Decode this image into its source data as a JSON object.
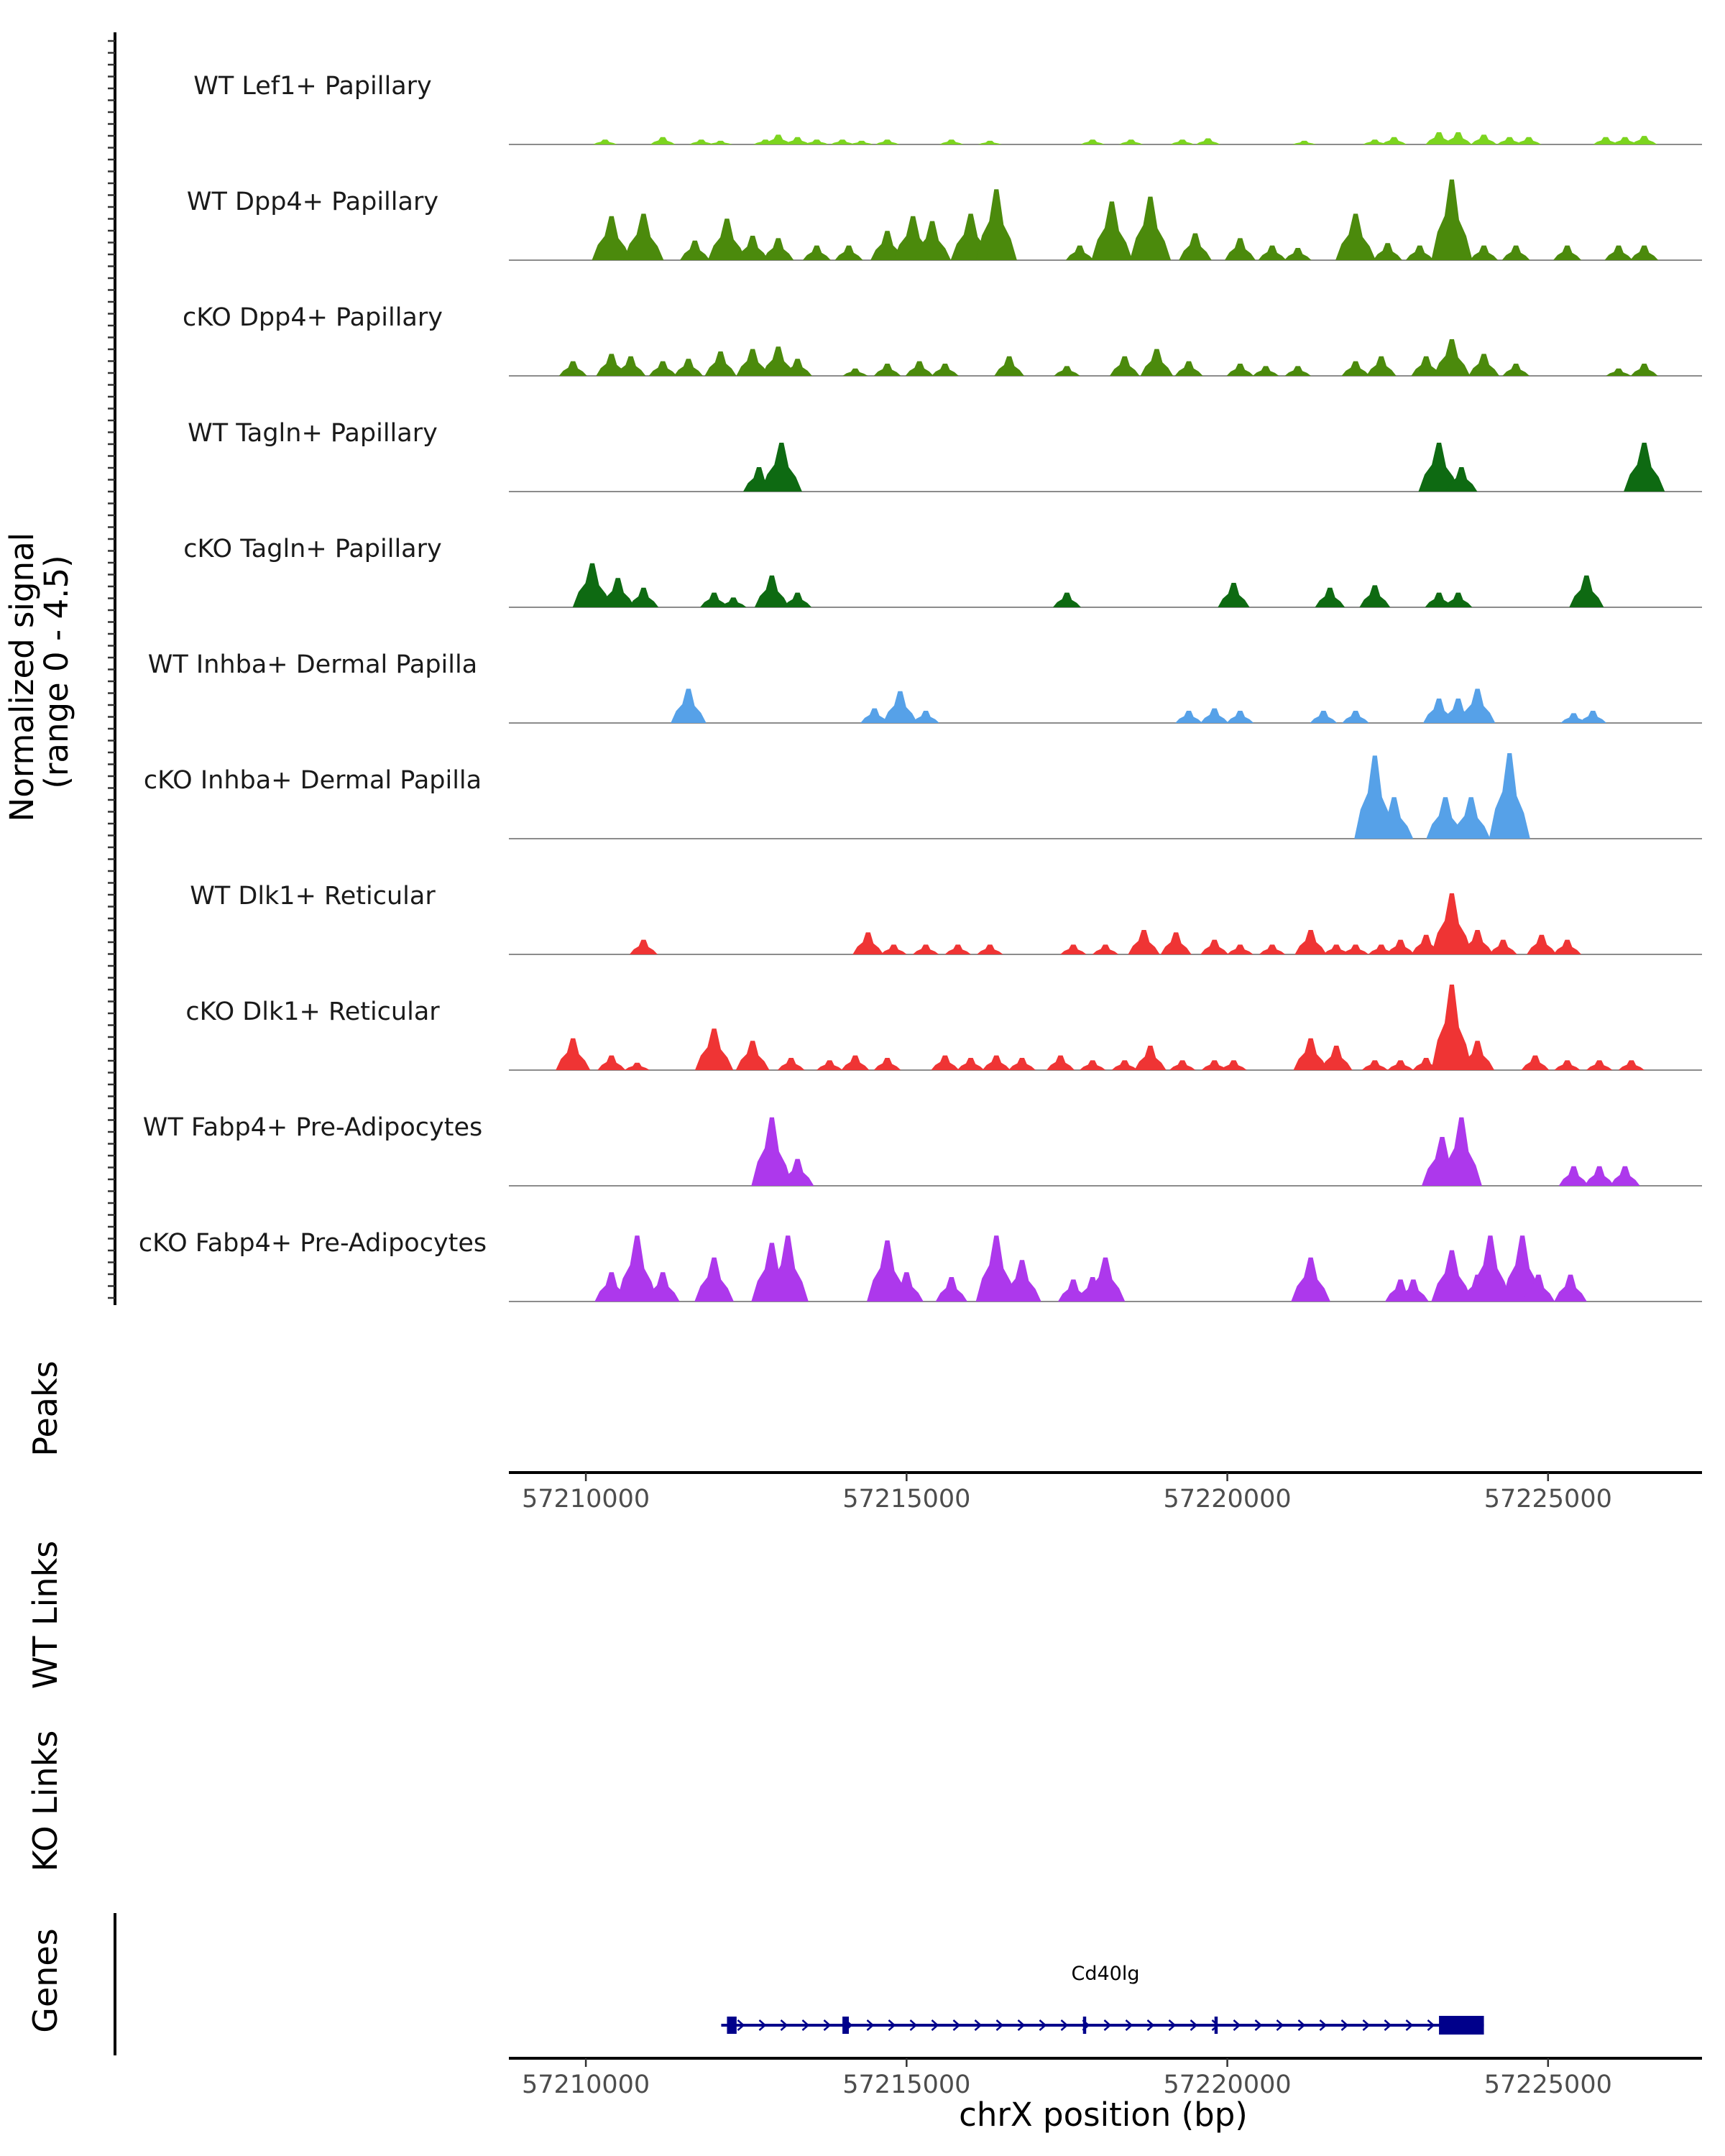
{
  "chart_data": {
    "type": "coverage",
    "title": "",
    "xlabel": "chrX position (bp)",
    "ylabel": "Normalized signal\n(range 0 - 4.5)",
    "xlim": [
      57208800,
      57227400
    ],
    "ylim": [
      0,
      4.5
    ],
    "xticks": [
      57210000,
      57215000,
      57220000,
      57225000
    ],
    "xtick_labels": [
      "57210000",
      "57215000",
      "57220000",
      "57225000"
    ],
    "section_labels": {
      "peaks": "Peaks",
      "wt_links": "WT Links",
      "ko_links": "KO Links",
      "genes": "Genes"
    },
    "tracks": [
      {
        "name": "WT Lef1+ Papillary",
        "color": "#7cd41f",
        "peaks": [
          [
            57210300,
            0.2
          ],
          [
            57211200,
            0.3
          ],
          [
            57211800,
            0.2
          ],
          [
            57212100,
            0.15
          ],
          [
            57212800,
            0.2
          ],
          [
            57213000,
            0.4
          ],
          [
            57213300,
            0.3
          ],
          [
            57213600,
            0.2
          ],
          [
            57214000,
            0.2
          ],
          [
            57214300,
            0.15
          ],
          [
            57214700,
            0.2
          ],
          [
            57215700,
            0.2
          ],
          [
            57216300,
            0.15
          ],
          [
            57217900,
            0.2
          ],
          [
            57218500,
            0.2
          ],
          [
            57219300,
            0.2
          ],
          [
            57219700,
            0.25
          ],
          [
            57221200,
            0.15
          ],
          [
            57222300,
            0.2
          ],
          [
            57222600,
            0.3
          ],
          [
            57223300,
            0.5
          ],
          [
            57223600,
            0.5
          ],
          [
            57224000,
            0.4
          ],
          [
            57224400,
            0.3
          ],
          [
            57224700,
            0.3
          ],
          [
            57225900,
            0.3
          ],
          [
            57226200,
            0.3
          ],
          [
            57226500,
            0.35
          ]
        ]
      },
      {
        "name": "WT Dpp4+ Papillary",
        "color": "#4b8a0c",
        "peaks": [
          [
            57210400,
            1.8
          ],
          [
            57210900,
            1.9
          ],
          [
            57211700,
            0.8
          ],
          [
            57212200,
            1.7
          ],
          [
            57212600,
            1.0
          ],
          [
            57213000,
            0.9
          ],
          [
            57213600,
            0.6
          ],
          [
            57214100,
            0.6
          ],
          [
            57214700,
            1.2
          ],
          [
            57215100,
            1.8
          ],
          [
            57215400,
            1.6
          ],
          [
            57216000,
            1.9
          ],
          [
            57216400,
            2.9
          ],
          [
            57217700,
            0.6
          ],
          [
            57218200,
            2.4
          ],
          [
            57218800,
            2.6
          ],
          [
            57219500,
            1.1
          ],
          [
            57220200,
            0.9
          ],
          [
            57220700,
            0.6
          ],
          [
            57221100,
            0.5
          ],
          [
            57222000,
            1.9
          ],
          [
            57222500,
            0.7
          ],
          [
            57223000,
            0.6
          ],
          [
            57223500,
            3.3
          ],
          [
            57224000,
            0.6
          ],
          [
            57224500,
            0.6
          ],
          [
            57225300,
            0.6
          ],
          [
            57226100,
            0.6
          ],
          [
            57226500,
            0.6
          ]
        ]
      },
      {
        "name": "cKO Dpp4+ Papillary",
        "color": "#4b8a0c",
        "peaks": [
          [
            57209800,
            0.6
          ],
          [
            57210400,
            0.9
          ],
          [
            57210700,
            0.8
          ],
          [
            57211200,
            0.6
          ],
          [
            57211600,
            0.7
          ],
          [
            57212100,
            1.0
          ],
          [
            57212600,
            1.1
          ],
          [
            57213000,
            1.2
          ],
          [
            57213300,
            0.7
          ],
          [
            57214200,
            0.3
          ],
          [
            57214700,
            0.5
          ],
          [
            57215200,
            0.6
          ],
          [
            57215600,
            0.5
          ],
          [
            57216600,
            0.8
          ],
          [
            57217500,
            0.4
          ],
          [
            57218400,
            0.8
          ],
          [
            57218900,
            1.1
          ],
          [
            57219400,
            0.6
          ],
          [
            57220200,
            0.5
          ],
          [
            57220600,
            0.4
          ],
          [
            57221100,
            0.4
          ],
          [
            57222000,
            0.6
          ],
          [
            57222400,
            0.8
          ],
          [
            57223100,
            0.8
          ],
          [
            57223500,
            1.5
          ],
          [
            57224000,
            0.9
          ],
          [
            57224500,
            0.5
          ],
          [
            57226100,
            0.3
          ],
          [
            57226500,
            0.5
          ]
        ]
      },
      {
        "name": "WT Tagln+ Papillary",
        "color": "#0e6a12",
        "peaks": [
          [
            57212700,
            1.0
          ],
          [
            57213050,
            2.0
          ],
          [
            57223300,
            2.0
          ],
          [
            57223650,
            1.0
          ],
          [
            57226500,
            2.0
          ]
        ]
      },
      {
        "name": "cKO Tagln+ Papillary",
        "color": "#0e6a12",
        "peaks": [
          [
            57210100,
            1.8
          ],
          [
            57210500,
            1.2
          ],
          [
            57210900,
            0.8
          ],
          [
            57212000,
            0.6
          ],
          [
            57212300,
            0.4
          ],
          [
            57212900,
            1.3
          ],
          [
            57213300,
            0.6
          ],
          [
            57217500,
            0.6
          ],
          [
            57220100,
            1.0
          ],
          [
            57221600,
            0.8
          ],
          [
            57222300,
            0.9
          ],
          [
            57223300,
            0.6
          ],
          [
            57223600,
            0.6
          ],
          [
            57225600,
            1.3
          ]
        ]
      },
      {
        "name": "WT Inhba+ Dermal Papilla",
        "color": "#56a1e8",
        "peaks": [
          [
            57211600,
            1.4
          ],
          [
            57214500,
            0.6
          ],
          [
            57214900,
            1.3
          ],
          [
            57215300,
            0.5
          ],
          [
            57219400,
            0.5
          ],
          [
            57219800,
            0.6
          ],
          [
            57220200,
            0.5
          ],
          [
            57221500,
            0.5
          ],
          [
            57222000,
            0.5
          ],
          [
            57223300,
            1.0
          ],
          [
            57223600,
            1.0
          ],
          [
            57223900,
            1.4
          ],
          [
            57225400,
            0.4
          ],
          [
            57225700,
            0.5
          ]
        ]
      },
      {
        "name": "cKO Inhba+ Dermal Papilla",
        "color": "#56a1e8",
        "peaks": [
          [
            57222300,
            3.4
          ],
          [
            57222600,
            1.7
          ],
          [
            57223400,
            1.7
          ],
          [
            57223800,
            1.7
          ],
          [
            57224400,
            3.5
          ]
        ]
      },
      {
        "name": "WT Dlk1+ Reticular",
        "color": "#ef3434",
        "peaks": [
          [
            57210900,
            0.6
          ],
          [
            57214400,
            0.9
          ],
          [
            57214800,
            0.4
          ],
          [
            57215300,
            0.4
          ],
          [
            57215800,
            0.4
          ],
          [
            57216300,
            0.4
          ],
          [
            57217600,
            0.4
          ],
          [
            57218100,
            0.4
          ],
          [
            57218700,
            1.0
          ],
          [
            57219200,
            0.9
          ],
          [
            57219800,
            0.6
          ],
          [
            57220200,
            0.4
          ],
          [
            57220700,
            0.4
          ],
          [
            57221300,
            1.0
          ],
          [
            57221700,
            0.4
          ],
          [
            57222000,
            0.4
          ],
          [
            57222400,
            0.4
          ],
          [
            57222700,
            0.6
          ],
          [
            57223100,
            0.8
          ],
          [
            57223500,
            2.5
          ],
          [
            57223900,
            1.0
          ],
          [
            57224300,
            0.6
          ],
          [
            57224900,
            0.8
          ],
          [
            57225300,
            0.6
          ]
        ]
      },
      {
        "name": "cKO Dlk1+ Reticular",
        "color": "#ef3434",
        "peaks": [
          [
            57209800,
            1.3
          ],
          [
            57210400,
            0.6
          ],
          [
            57210800,
            0.3
          ],
          [
            57212000,
            1.7
          ],
          [
            57212600,
            1.2
          ],
          [
            57213200,
            0.5
          ],
          [
            57213800,
            0.4
          ],
          [
            57214200,
            0.6
          ],
          [
            57214700,
            0.5
          ],
          [
            57215600,
            0.6
          ],
          [
            57216000,
            0.5
          ],
          [
            57216400,
            0.6
          ],
          [
            57216800,
            0.5
          ],
          [
            57217400,
            0.6
          ],
          [
            57217900,
            0.4
          ],
          [
            57218400,
            0.4
          ],
          [
            57218800,
            1.0
          ],
          [
            57219300,
            0.4
          ],
          [
            57219800,
            0.4
          ],
          [
            57220100,
            0.4
          ],
          [
            57221300,
            1.3
          ],
          [
            57221700,
            1.0
          ],
          [
            57222300,
            0.4
          ],
          [
            57222700,
            0.4
          ],
          [
            57223100,
            0.5
          ],
          [
            57223500,
            3.5
          ],
          [
            57223900,
            1.2
          ],
          [
            57224800,
            0.6
          ],
          [
            57225300,
            0.4
          ],
          [
            57225800,
            0.4
          ],
          [
            57226300,
            0.4
          ]
        ]
      },
      {
        "name": "WT Fabp4+ Pre-Adipocytes",
        "color": "#ad38ec",
        "peaks": [
          [
            57212900,
            2.8
          ],
          [
            57213300,
            1.1
          ],
          [
            57223350,
            2.0
          ],
          [
            57223650,
            2.8
          ],
          [
            57225400,
            0.8
          ],
          [
            57225800,
            0.8
          ],
          [
            57226200,
            0.8
          ]
        ]
      },
      {
        "name": "cKO Fabp4+ Pre-Adipocytes",
        "color": "#ad38ec",
        "peaks": [
          [
            57210400,
            1.2
          ],
          [
            57210800,
            2.7
          ],
          [
            57211200,
            1.2
          ],
          [
            57212000,
            1.8
          ],
          [
            57212900,
            2.4
          ],
          [
            57213150,
            2.7
          ],
          [
            57214700,
            2.5
          ],
          [
            57215000,
            1.2
          ],
          [
            57215700,
            1.0
          ],
          [
            57216400,
            2.7
          ],
          [
            57216800,
            1.7
          ],
          [
            57217600,
            0.9
          ],
          [
            57217900,
            1.0
          ],
          [
            57218100,
            1.8
          ],
          [
            57221300,
            1.8
          ],
          [
            57222700,
            0.9
          ],
          [
            57222900,
            0.9
          ],
          [
            57223500,
            2.1
          ],
          [
            57223900,
            1.1
          ],
          [
            57224100,
            2.7
          ],
          [
            57224600,
            2.7
          ],
          [
            57224850,
            1.1
          ],
          [
            57225350,
            1.1
          ]
        ]
      }
    ],
    "genes": [
      {
        "name": "Cd40lg",
        "start": 57212200,
        "end": 57224000,
        "strand": "+",
        "exons": [
          [
            57212200,
            57212350
          ],
          [
            57214000,
            57214100
          ],
          [
            57217750,
            57217800
          ],
          [
            57219800,
            57219850
          ],
          [
            57223300,
            57224000
          ]
        ]
      }
    ]
  }
}
